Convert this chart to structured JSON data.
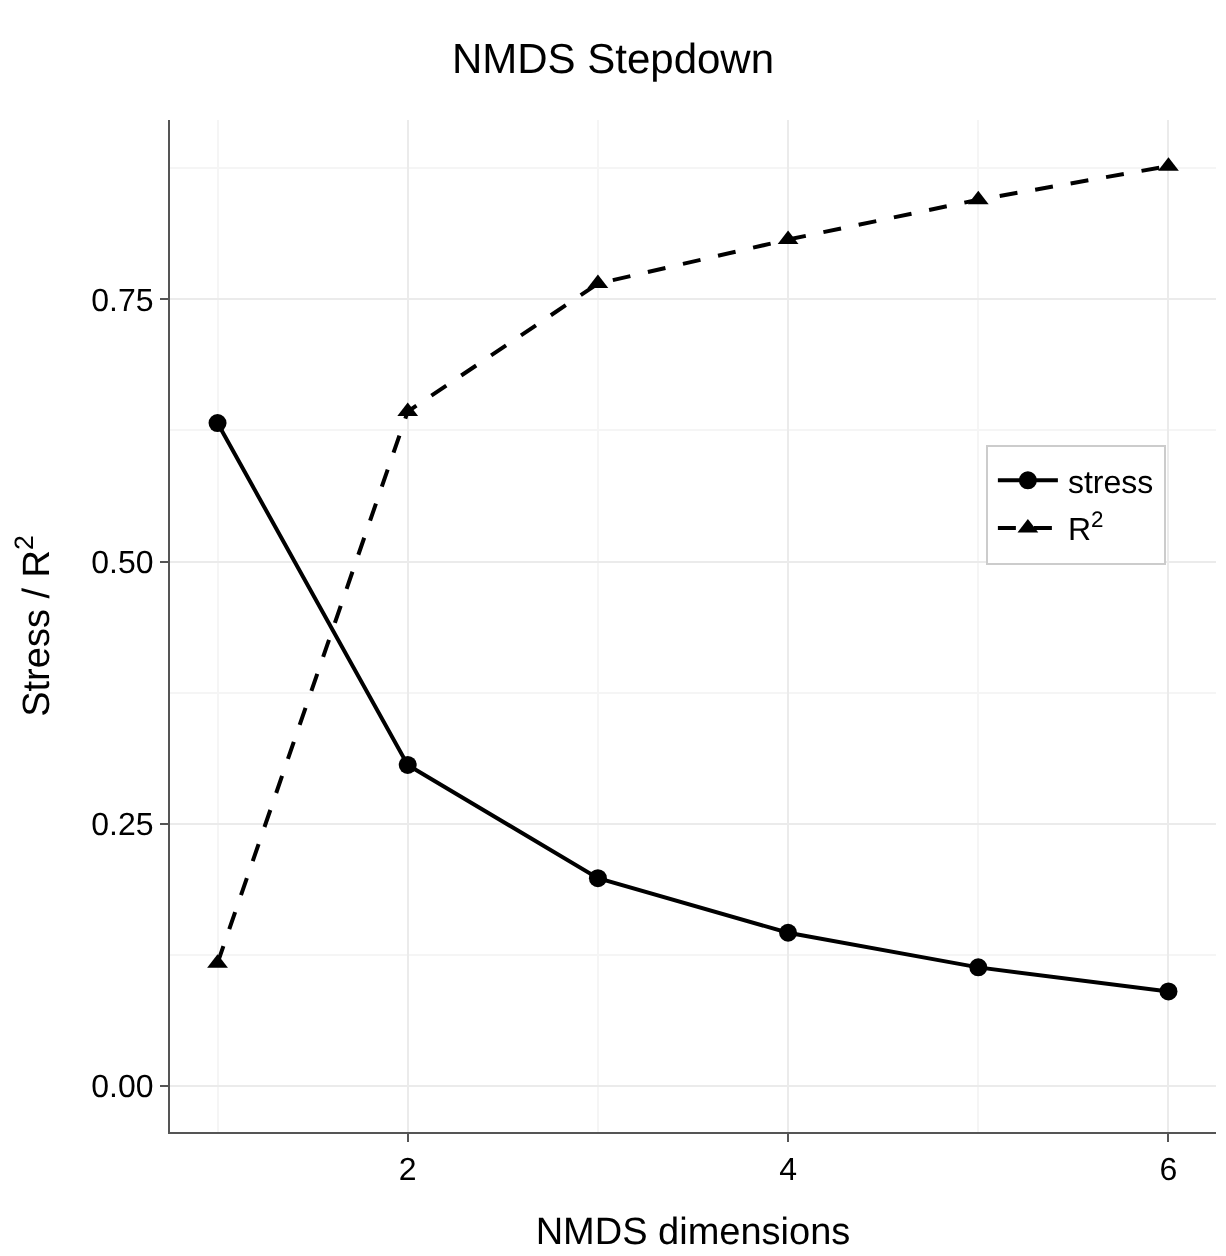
{
  "chart_data": {
    "type": "line",
    "title": "NMDS Stepdown",
    "xlabel": "NMDS dimensions",
    "ylabel": "Stress / R$^{2}$",
    "x": [
      1,
      2,
      3,
      4,
      5,
      6
    ],
    "series": [
      {
        "name": "stress",
        "color": "#000000",
        "values": [
          0.632,
          0.306,
          0.198,
          0.146,
          0.113,
          0.09
        ],
        "marker": "circle",
        "line_style": "solid"
      },
      {
        "name": "R$^{2}$",
        "color": "#000000",
        "values": [
          0.117,
          0.643,
          0.765,
          0.807,
          0.845,
          0.877
        ],
        "marker": "triangle",
        "line_style": "dashed"
      }
    ],
    "xlim": [
      0.75,
      6.25
    ],
    "xticks": [
      2,
      4,
      6
    ],
    "ylim": [
      -0.044,
      0.921
    ],
    "yticks": [
      {
        "value": 0,
        "label": "0.00"
      },
      {
        "value": 0.25,
        "label": "0.25"
      },
      {
        "value": 0.5,
        "label": "0.50"
      },
      {
        "value": 0.75,
        "label": "0.75"
      }
    ],
    "grid": true,
    "legend": "right"
  }
}
